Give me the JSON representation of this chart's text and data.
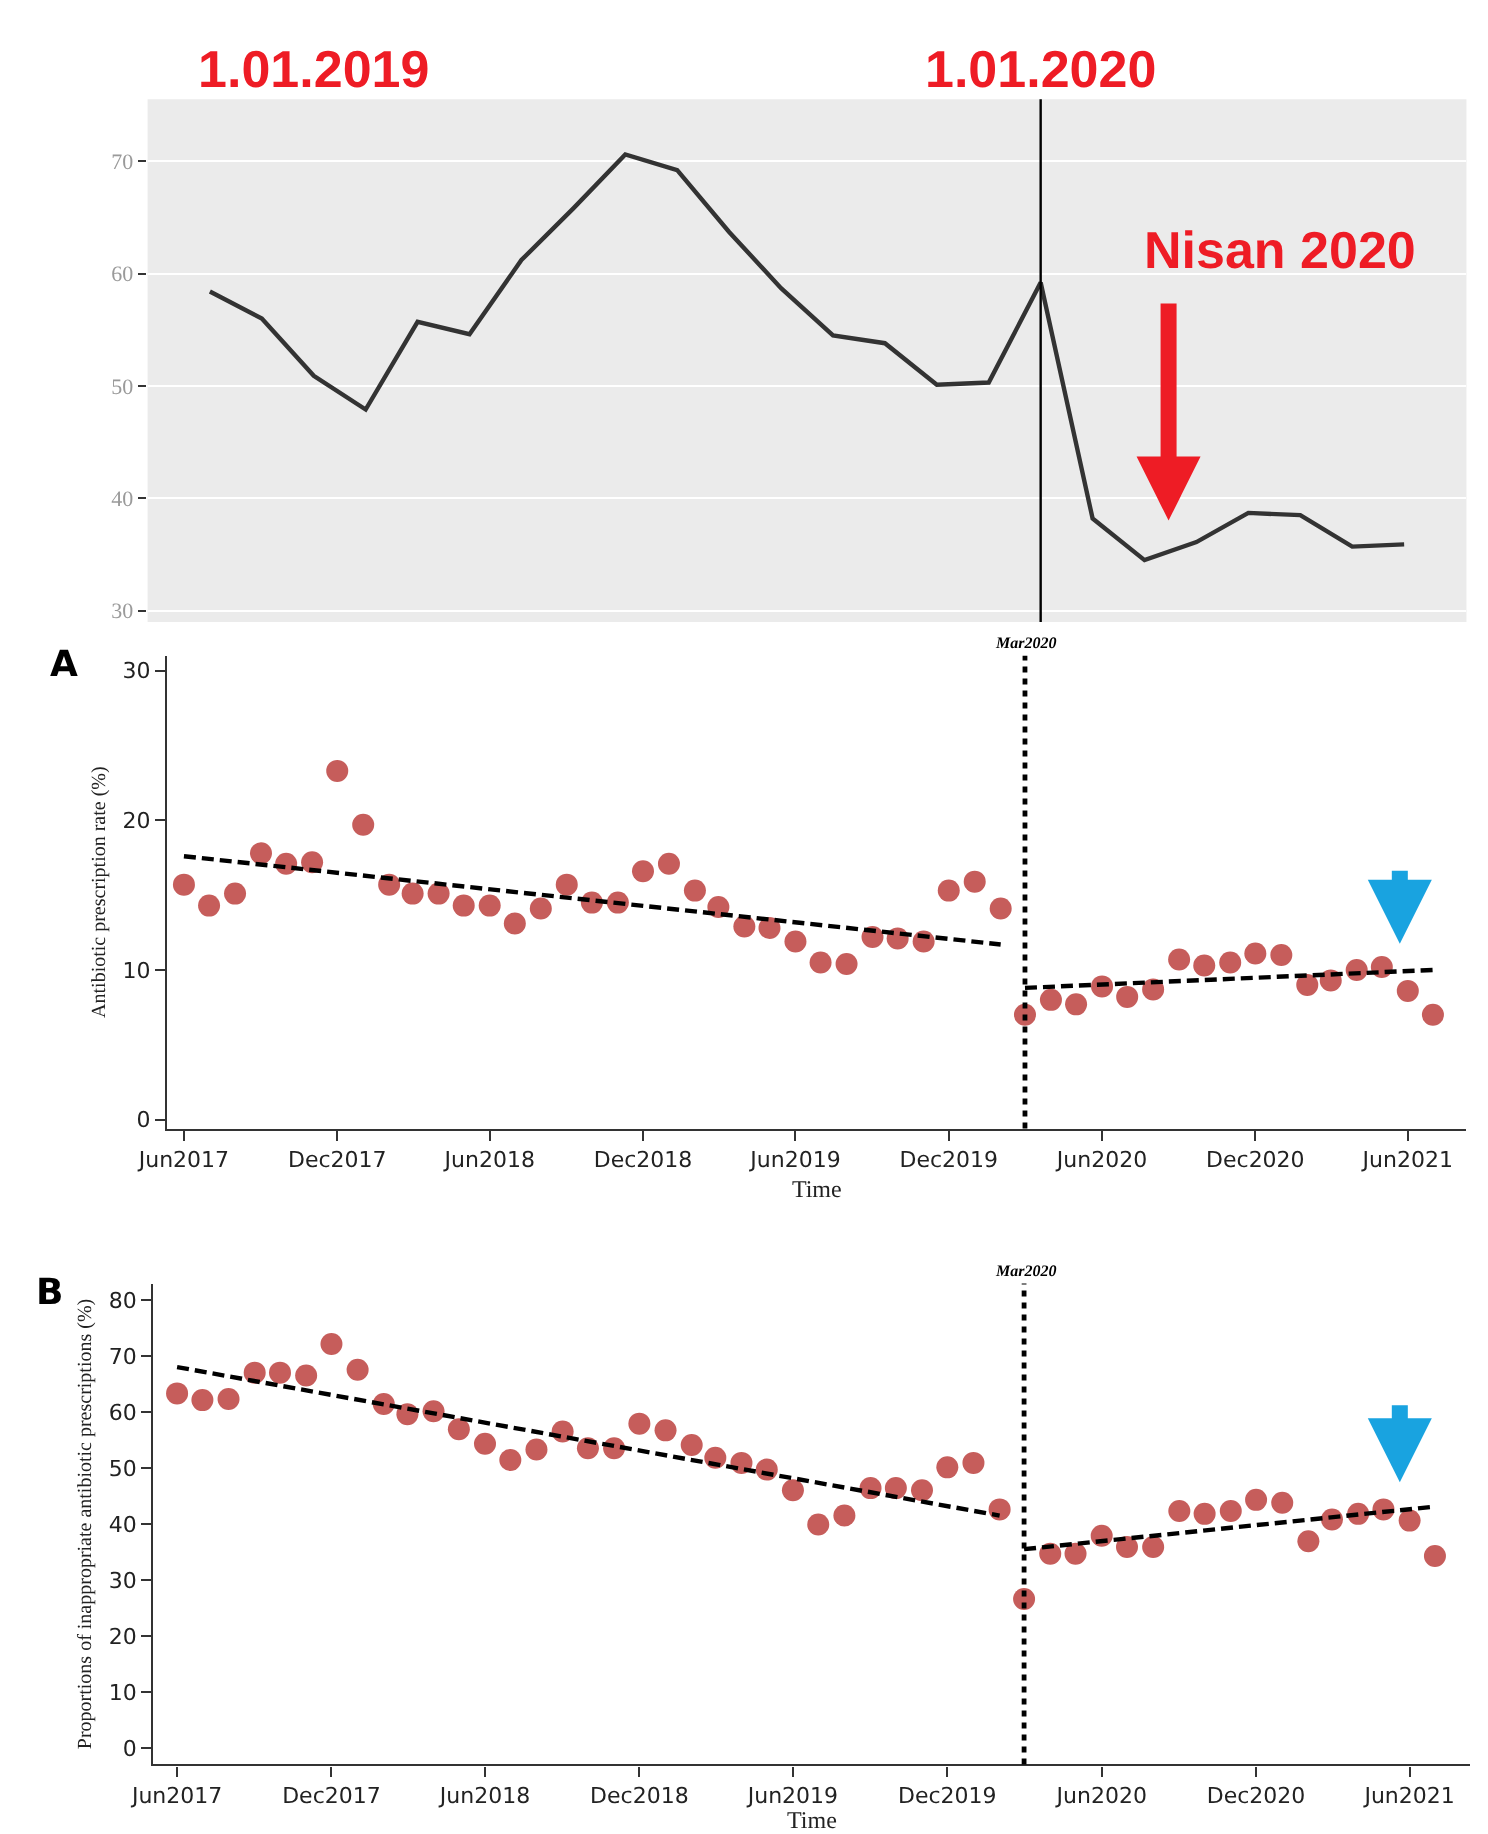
{
  "chart_data": [
    {
      "type": "line",
      "categories": [
        null,
        null,
        "1.01.2019",
        null,
        null,
        null,
        null,
        null,
        null,
        null,
        null,
        null,
        null,
        null,
        null,
        null,
        "1.01.2020",
        null,
        null,
        null,
        null,
        null,
        null,
        null
      ],
      "series": [
        {
          "color": "#333333",
          "values": [
            58.4,
            56.0,
            50.9,
            47.9,
            55.7,
            54.6,
            61.2,
            65.8,
            70.6,
            69.2,
            63.7,
            58.7,
            54.5,
            53.8,
            50.1,
            50.3,
            59.2,
            38.2,
            34.5,
            36.1,
            38.7,
            38.5,
            35.7,
            35.9
          ]
        }
      ],
      "ylim": [
        29,
        75.5
      ],
      "yticks": [
        30,
        40,
        50,
        60,
        70
      ],
      "grid": "y",
      "marker": "none",
      "line_style": "solid",
      "ref_lines": [
        {
          "axis": "x",
          "value": "1.01.2020",
          "color": "#000000",
          "line_style": "solid"
        }
      ],
      "annotations": [
        "Nisan 2020"
      ]
    },
    {
      "type": "scatter",
      "x": [
        "2017-06",
        "2017-07",
        "2017-08",
        "2017-09",
        "2017-10",
        "2017-11",
        "2017-12",
        "2018-01",
        "2018-02",
        "2018-03",
        "2018-04",
        "2018-05",
        "2018-06",
        "2018-07",
        "2018-08",
        "2018-09",
        "2018-10",
        "2018-11",
        "2018-12",
        "2019-01",
        "2019-02",
        "2019-03",
        "2019-04",
        "2019-05",
        "2019-06",
        "2019-07",
        "2019-08",
        "2019-09",
        "2019-10",
        "2019-11",
        "2019-12",
        "2020-01",
        "2020-02",
        "2020-03",
        "2020-04",
        "2020-05",
        "2020-06",
        "2020-07",
        "2020-08",
        "2020-09",
        "2020-10",
        "2020-11",
        "2020-12",
        "2021-01",
        "2021-02",
        "2021-03",
        "2021-04",
        "2021-05",
        "2021-06",
        "2021-07"
      ],
      "series": [
        {
          "type": "scatter",
          "color": "#c65d5b",
          "marker": "circle",
          "values": [
            15.7,
            14.3,
            15.1,
            17.8,
            17.1,
            17.2,
            23.3,
            19.7,
            15.7,
            15.1,
            15.1,
            14.3,
            14.3,
            13.1,
            14.1,
            15.7,
            14.5,
            14.5,
            16.6,
            17.1,
            15.3,
            14.2,
            12.9,
            12.8,
            11.9,
            10.5,
            10.4,
            12.2,
            12.1,
            11.9,
            15.3,
            15.9,
            14.1,
            7.0,
            8.0,
            7.7,
            8.9,
            8.2,
            8.7,
            10.7,
            10.3,
            10.5,
            11.1,
            11.0,
            9.0,
            9.3,
            10.0,
            10.2,
            8.6,
            7.0
          ]
        },
        {
          "type": "line",
          "color": "#000000",
          "marker": "none",
          "line_style": "dashed",
          "x": [
            "2017-06",
            "2020-02"
          ],
          "values": [
            17.6,
            11.7
          ]
        },
        {
          "type": "line",
          "color": "#000000",
          "marker": "none",
          "line_style": "dashed",
          "x": [
            "2020-03",
            "2021-07"
          ],
          "values": [
            8.8,
            10.0
          ]
        }
      ],
      "xlim": [
        "2017-05-12",
        "2021-08-10"
      ],
      "xticks": [
        {
          "value": "2017-06",
          "label": "Jun2017"
        },
        {
          "value": "2017-12",
          "label": "Dec2017"
        },
        {
          "value": "2018-06",
          "label": "Jun2018"
        },
        {
          "value": "2018-12",
          "label": "Dec2018"
        },
        {
          "value": "2019-06",
          "label": "Jun2019"
        },
        {
          "value": "2019-12",
          "label": "Dec2019"
        },
        {
          "value": "2020-06",
          "label": "Jun2020"
        },
        {
          "value": "2020-12",
          "label": "Dec2020"
        },
        {
          "value": "2021-06",
          "label": "Jun2021"
        }
      ],
      "ylim": [
        -0.6,
        31
      ],
      "yticks": [
        0,
        10,
        20,
        30
      ],
      "xlabel": "Time",
      "ylabel": "Antibiotic prescription rate (%)",
      "grid": false,
      "ref_lines": [
        {
          "axis": "x",
          "value": "2020-03",
          "label": "Mar2020",
          "color": "#000000",
          "line_style": "dotted"
        }
      ],
      "annotations": [
        "A"
      ]
    },
    {
      "type": "scatter",
      "x": [
        "2017-06",
        "2017-07",
        "2017-08",
        "2017-09",
        "2017-10",
        "2017-11",
        "2017-12",
        "2018-01",
        "2018-02",
        "2018-03",
        "2018-04",
        "2018-05",
        "2018-06",
        "2018-07",
        "2018-08",
        "2018-09",
        "2018-10",
        "2018-11",
        "2018-12",
        "2019-01",
        "2019-02",
        "2019-03",
        "2019-04",
        "2019-05",
        "2019-06",
        "2019-07",
        "2019-08",
        "2019-09",
        "2019-10",
        "2019-11",
        "2019-12",
        "2020-01",
        "2020-02",
        "2020-03",
        "2020-04",
        "2020-05",
        "2020-06",
        "2020-07",
        "2020-08",
        "2020-09",
        "2020-10",
        "2020-11",
        "2020-12",
        "2021-01",
        "2021-02",
        "2021-03",
        "2021-04",
        "2021-05",
        "2021-06",
        "2021-07"
      ],
      "series": [
        {
          "type": "scatter",
          "color": "#c65d5b",
          "marker": "circle",
          "values": [
            63.3,
            62.1,
            62.3,
            67.0,
            67.0,
            66.5,
            72.1,
            67.5,
            61.4,
            59.6,
            60.1,
            56.9,
            54.3,
            51.4,
            53.3,
            56.5,
            53.5,
            53.5,
            57.9,
            56.7,
            54.1,
            51.8,
            50.9,
            49.7,
            46.0,
            39.9,
            41.5,
            46.4,
            46.4,
            46.0,
            50.1,
            50.9,
            42.6,
            26.6,
            34.7,
            34.7,
            37.9,
            35.9,
            35.9,
            42.3,
            41.8,
            42.3,
            44.3,
            43.8,
            36.9,
            40.8,
            41.8,
            42.6,
            40.6,
            34.3
          ]
        },
        {
          "type": "line",
          "color": "#000000",
          "marker": "none",
          "line_style": "dashed",
          "x": [
            "2017-06",
            "2020-02"
          ],
          "values": [
            68.0,
            41.5
          ]
        },
        {
          "type": "line",
          "color": "#000000",
          "marker": "none",
          "line_style": "dashed",
          "x": [
            "2020-03",
            "2021-07"
          ],
          "values": [
            35.5,
            43.1
          ]
        }
      ],
      "xlim": [
        "2017-05-04",
        "2021-08-12"
      ],
      "xticks": [
        {
          "value": "2017-06",
          "label": "Jun2017"
        },
        {
          "value": "2017-12",
          "label": "Dec2017"
        },
        {
          "value": "2018-06",
          "label": "Jun2018"
        },
        {
          "value": "2018-12",
          "label": "Dec2018"
        },
        {
          "value": "2019-06",
          "label": "Jun2019"
        },
        {
          "value": "2019-12",
          "label": "Dec2019"
        },
        {
          "value": "2020-06",
          "label": "Jun2020"
        },
        {
          "value": "2020-12",
          "label": "Dec2020"
        },
        {
          "value": "2021-06",
          "label": "Jun2021"
        }
      ],
      "ylim": [
        -2.9,
        82.9
      ],
      "yticks": [
        0,
        10,
        20,
        30,
        40,
        50,
        60,
        70,
        80
      ],
      "xlabel": "Time",
      "ylabel": "Proportions of inappropriate antibiotic prescriptions (%)",
      "grid": false,
      "ref_lines": [
        {
          "axis": "x",
          "value": "2020-03",
          "label": "Mar2020",
          "color": "#000000",
          "line_style": "dotted"
        }
      ],
      "annotations": [
        "B"
      ]
    }
  ]
}
